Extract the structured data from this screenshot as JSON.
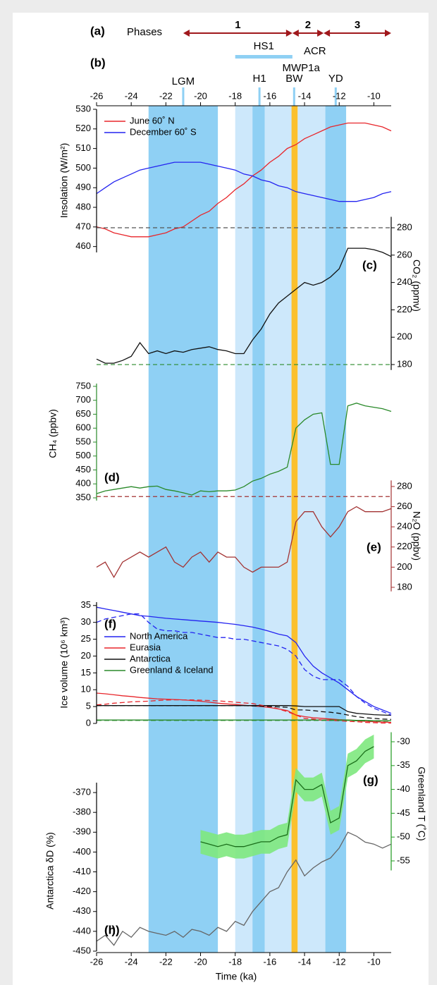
{
  "chart_data": {
    "type": "line",
    "x_label": "Time (ka)",
    "xlim": [
      -26,
      -9
    ],
    "xticks": [
      -26,
      -24,
      -22,
      -20,
      -18,
      -16,
      -14,
      -12,
      -10
    ],
    "x": [
      -26,
      -25.5,
      -25,
      -24.5,
      -24,
      -23.5,
      -23,
      -22.5,
      -22,
      -21.5,
      -21,
      -20.5,
      -20,
      -19.5,
      -19,
      -18.5,
      -18,
      -17.5,
      -17,
      -16.5,
      -16,
      -15.5,
      -15,
      -14.5,
      -14,
      -13.5,
      -13,
      -12.5,
      -12,
      -11.5,
      -11,
      -10.5,
      -10,
      -9.5,
      -9
    ],
    "bands": [
      {
        "from": -23,
        "to": -19,
        "color": "#8fd0f4"
      },
      {
        "from": -18,
        "to": -14.7,
        "color": "#cde8fb"
      },
      {
        "from": -17,
        "to": -16.3,
        "color": "#8fd0f4"
      },
      {
        "from": -14.4,
        "to": -12.8,
        "color": "#cde8fb"
      },
      {
        "from": -12.8,
        "to": -11.6,
        "color": "#8fd0f4"
      },
      {
        "from": -14.75,
        "to": -14.4,
        "color": "#fbc02d"
      }
    ],
    "phases_title": "(a)",
    "phases_label": "Phases",
    "phases_color": "#a0181c",
    "phases": [
      {
        "label": "1",
        "from": -21,
        "to": -14.7
      },
      {
        "label": "2",
        "from": -14.7,
        "to": -12.9
      },
      {
        "label": "3",
        "from": -12.9,
        "to": -9
      }
    ],
    "events_title": "(b)",
    "events": [
      {
        "label": "HS1",
        "from": -18,
        "to": -14.7
      },
      {
        "label": "ACR",
        "x": -13.4
      },
      {
        "label": "LGM",
        "x": -21,
        "marker": true
      },
      {
        "label": "H1",
        "x": -16.6,
        "marker": true
      },
      {
        "label": "MWP1a",
        "x": -14.2
      },
      {
        "label": "BW",
        "x": -14.6,
        "marker": true
      },
      {
        "label": "YD",
        "x": -12.2,
        "marker": true
      }
    ],
    "panels": [
      {
        "type": "line",
        "y_label": "Insolation (W/m²)",
        "side": "left",
        "axis_color": "#000000",
        "ylim": [
          457,
          530
        ],
        "yticks": [
          460,
          470,
          480,
          490,
          500,
          510,
          520,
          530
        ],
        "series": [
          {
            "name": "June 60˚ N",
            "color": "#e8262b",
            "values": [
              470,
              469,
              467,
              466,
              465,
              465,
              465,
              466,
              467,
              469,
              470,
              473,
              476,
              478,
              482,
              485,
              489,
              492,
              496,
              499,
              503,
              506,
              510,
              512,
              515,
              517,
              519,
              521,
              522,
              523,
              523,
              523,
              522,
              521,
              519
            ]
          },
          {
            "name": "December 60˚ S",
            "color": "#2424f0",
            "values": [
              487,
              490,
              493,
              495,
              497,
              499,
              500,
              501,
              502,
              503,
              503,
              503,
              503,
              502,
              501,
              500,
              499,
              497,
              496,
              494,
              493,
              491,
              490,
              488,
              487,
              486,
              485,
              484,
              483,
              483,
              483,
              484,
              485,
              487,
              488
            ]
          }
        ]
      },
      {
        "type": "line",
        "tag": "(c)",
        "y_label": "CO₂ (ppmv)",
        "side": "right",
        "axis_color": "#000000",
        "ylim": [
          176,
          288
        ],
        "yticks": [
          180,
          200,
          220,
          240,
          260,
          280
        ],
        "ref_lines": [
          {
            "value": 280,
            "color": "#555555"
          },
          {
            "value": 180,
            "color": "#2a8a2a"
          }
        ],
        "series": [
          {
            "color": "#111111",
            "values": [
              184,
              181,
              181,
              183,
              186,
              196,
              188,
              190,
              188,
              190,
              189,
              191,
              192,
              193,
              191,
              190,
              188,
              188,
              198,
              206,
              217,
              225,
              230,
              235,
              240,
              238,
              240,
              244,
              250,
              265,
              265,
              265,
              264,
              262,
              259
            ]
          }
        ]
      },
      {
        "type": "line",
        "tag": "(d)",
        "y_label": "CH₄ (ppbv)",
        "side": "left",
        "axis_color": "#2a8a2a",
        "ylim": [
          340,
          760
        ],
        "yticks": [
          350,
          400,
          450,
          500,
          550,
          600,
          650,
          700,
          750
        ],
        "series": [
          {
            "color": "#2a8a2a",
            "values": [
              365,
              375,
              380,
              385,
              390,
              385,
              390,
              392,
              380,
              375,
              368,
              360,
              375,
              372,
              375,
              375,
              378,
              390,
              410,
              420,
              435,
              445,
              460,
              600,
              630,
              650,
              655,
              470,
              470,
              680,
              690,
              680,
              675,
              670,
              660
            ]
          }
        ]
      },
      {
        "type": "line",
        "tag": "(e)",
        "y_label": "N₂O (ppbv)",
        "side": "right",
        "axis_color": "#a33333",
        "ylim": [
          176,
          286
        ],
        "yticks": [
          180,
          200,
          220,
          240,
          260,
          280
        ],
        "ref_lines": [
          {
            "value": 270,
            "color": "#a33333"
          }
        ],
        "series": [
          {
            "color": "#a33333",
            "values": [
              200,
              205,
              190,
              205,
              210,
              215,
              210,
              215,
              220,
              205,
              200,
              210,
              215,
              205,
              215,
              210,
              210,
              200,
              195,
              200,
              200,
              200,
              205,
              245,
              255,
              255,
              240,
              230,
              240,
              255,
              260,
              255,
              255,
              255,
              258
            ]
          }
        ]
      },
      {
        "type": "line",
        "tag": "(f)",
        "y_label": "Ice volume (10⁶ km³)",
        "side": "left",
        "axis_color": "#000000",
        "ylim": [
          0,
          36
        ],
        "yticks": [
          0,
          5,
          10,
          15,
          20,
          25,
          30,
          35
        ],
        "series": [
          {
            "name": "North America",
            "color": "#2424f0",
            "values": [
              34.5,
              34,
              33.5,
              33,
              32.5,
              32,
              31.8,
              31.5,
              31.2,
              31,
              30.8,
              30.6,
              30.4,
              30.2,
              30,
              29.7,
              29.4,
              29,
              28.6,
              28,
              27.3,
              26.5,
              26,
              24,
              20,
              17,
              15,
              13.5,
              12,
              10,
              8,
              6.5,
              5,
              4,
              3
            ]
          },
          {
            "name": "Eurasia",
            "color": "#e8262b",
            "values": [
              9,
              8.8,
              8.5,
              8.2,
              8,
              7.7,
              7.5,
              7.3,
              7.2,
              7.1,
              7,
              6.8,
              6.6,
              6.3,
              6,
              5.8,
              5.6,
              5.4,
              5.2,
              5,
              4.7,
              4.3,
              3.8,
              2.5,
              2,
              1.7,
              1.5,
              1.3,
              1.1,
              1,
              0.8,
              0.6,
              0.5,
              0.4,
              0.3
            ]
          },
          {
            "name": "Antarctica",
            "color": "#111111",
            "values": [
              5.3,
              5.3,
              5.3,
              5.3,
              5.3,
              5.3,
              5.3,
              5.3,
              5.3,
              5.3,
              5.3,
              5.3,
              5.3,
              5.3,
              5.3,
              5.3,
              5.3,
              5.3,
              5.3,
              5.3,
              5.3,
              5.3,
              5.3,
              5.2,
              5,
              5,
              5,
              5,
              5,
              3.5,
              3,
              2.8,
              2.6,
              2.5,
              2.4
            ]
          },
          {
            "name": "Greenland & Iceland",
            "color": "#2a8a2a",
            "values": [
              1,
              1,
              1,
              1,
              1,
              1,
              1,
              1,
              1,
              1,
              1,
              1,
              1,
              1,
              1,
              1,
              1,
              1,
              1,
              1,
              1,
              1,
              1,
              1,
              1,
              1,
              1,
              1,
              1,
              1,
              0.9,
              0.9,
              0.8,
              0.8,
              0.8
            ]
          },
          {
            "color": "#2424f0",
            "dashed": true,
            "values": [
              30,
              31,
              31.5,
              32,
              32.5,
              32.5,
              30,
              28,
              27.5,
              27.5,
              27,
              27,
              26.5,
              26,
              25.5,
              25.5,
              25,
              25,
              24.5,
              24,
              23.5,
              23,
              22,
              20,
              16,
              14,
              13,
              13,
              13,
              11,
              8,
              6,
              4.5,
              3.5,
              2.5
            ]
          },
          {
            "color": "#e8262b",
            "dashed": true,
            "values": [
              5.5,
              5.7,
              6,
              6.2,
              6.4,
              6.5,
              6.6,
              6.8,
              6.9,
              7,
              7,
              7,
              6.9,
              6.8,
              6.7,
              6.5,
              6.3,
              6.1,
              5.9,
              5.4,
              5,
              4.3,
              3.5,
              2.5,
              1.5,
              1.3,
              1,
              0.9,
              0.8,
              0.6,
              0.5,
              0.3,
              0.2,
              0.1,
              0.1
            ]
          },
          {
            "color": "#111111",
            "dashed": true,
            "values": [
              5.3,
              5.3,
              5.3,
              5.3,
              5.3,
              5.3,
              5.3,
              5.3,
              5.3,
              5.3,
              5.3,
              5.3,
              5.3,
              5.3,
              5.3,
              5.3,
              5.3,
              5.3,
              5.2,
              5.1,
              5,
              4.9,
              4.8,
              4,
              4,
              3.8,
              3.5,
              3.3,
              3,
              2.5,
              2,
              1.7,
              1.5,
              1.3,
              1.2
            ]
          },
          {
            "color": "#2a8a2a",
            "dashed": true,
            "values": [
              0.9,
              0.9,
              0.9,
              0.9,
              0.9,
              0.9,
              0.9,
              0.9,
              0.9,
              0.9,
              0.9,
              0.9,
              0.9,
              0.9,
              0.9,
              0.9,
              0.9,
              0.9,
              0.9,
              0.9,
              0.9,
              0.9,
              0.9,
              0.9,
              0.9,
              0.9,
              0.9,
              0.9,
              0.9,
              0.9,
              0.8,
              0.8,
              0.7,
              0.7,
              0.7
            ]
          }
        ]
      },
      {
        "type": "line",
        "tag": "(g)",
        "y_label": "Greenland T (˚C)",
        "side": "right",
        "axis_color": "#1f9a1f",
        "label_color": "#1f9a1f",
        "ylim": [
          -57,
          -28
        ],
        "yticks": [
          -55,
          -50,
          -45,
          -40,
          -35,
          -30
        ],
        "series": [
          {
            "color": "#1a6e1a",
            "band_color": "#7ee87e",
            "error": 2.5,
            "values": [
              null,
              null,
              null,
              null,
              null,
              null,
              null,
              null,
              null,
              null,
              null,
              null,
              -51,
              -51.5,
              -52,
              -51.5,
              -52,
              -52,
              -51.5,
              -51,
              -51,
              -50,
              -49.5,
              -38,
              -40,
              -40,
              -39,
              -47,
              -46,
              -35,
              -34,
              -32,
              -31,
              null,
              null
            ]
          }
        ]
      },
      {
        "type": "line",
        "tag": "(h)",
        "y_label": "Antarctica δD (%)",
        "side": "left",
        "axis_color": "#000000",
        "ylim": [
          -450,
          -365
        ],
        "yticks": [
          -450,
          -440,
          -430,
          -420,
          -410,
          -400,
          -390,
          -380,
          -370
        ],
        "series": [
          {
            "color": "#666666",
            "values": [
              -445,
              -442,
              -447,
              -440,
              -443,
              -438,
              -440,
              -441,
              -442,
              -440,
              -443,
              -439,
              -440,
              -442,
              -438,
              -440,
              -435,
              -437,
              -430,
              -425,
              -420,
              -418,
              -410,
              -404,
              -412,
              -408,
              -405,
              -403,
              -398,
              -390,
              -392,
              -395,
              -396,
              -398,
              -396
            ]
          }
        ]
      }
    ],
    "tail_tag": "(i)"
  }
}
